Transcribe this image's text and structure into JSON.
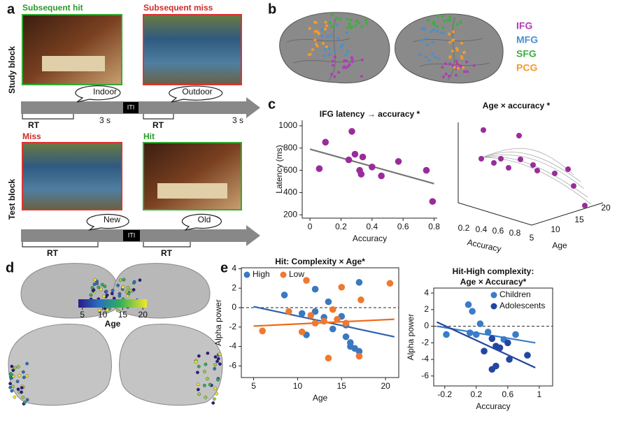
{
  "panel_a": {
    "label": "a",
    "study_block": {
      "title": "Study block",
      "items": [
        "Subsequent hit",
        "Subsequent miss"
      ],
      "responses": [
        "Indoor",
        "Outdoor"
      ],
      "iti": "ITI",
      "rt": [
        "RT",
        "RT"
      ],
      "durations": [
        "3 s",
        "3 s"
      ]
    },
    "test_block": {
      "title": "Test block",
      "items": [
        "Miss",
        "Hit"
      ],
      "responses": [
        "New",
        "Old"
      ],
      "iti": "ITI",
      "rt": [
        "RT",
        "RT"
      ]
    }
  },
  "panel_b": {
    "label": "b",
    "regions": [
      {
        "name": "IFG",
        "color": "#b03cb8"
      },
      {
        "name": "MFG",
        "color": "#4a8fd0"
      },
      {
        "name": "SFG",
        "color": "#3fae3f"
      },
      {
        "name": "PCG",
        "color": "#f39a2a"
      }
    ]
  },
  "panel_c": {
    "label": "c"
  },
  "panel_c_3d": {
    "title": "Age × accuracy *",
    "xlabel": "Accuracy",
    "ylabel": "Age",
    "xticks": [
      "0.2",
      "0.4",
      "0.6",
      "0.8"
    ],
    "yticks": [
      "5",
      "10",
      "15",
      "20"
    ]
  },
  "panel_d": {
    "label": "d",
    "colorbar": {
      "lim": [
        4,
        21
      ],
      "ticks": [
        5,
        10,
        15,
        20
      ],
      "label": "Age"
    }
  },
  "panel_e": {
    "label": "e"
  },
  "chart_data": [
    {
      "type": "scatter",
      "title": "IFG latency → accuracy *",
      "xlabel": "Accuracy",
      "ylabel": "Latency (ms)",
      "xlim": [
        -0.05,
        0.82
      ],
      "ylim": [
        170,
        1050
      ],
      "xticks": [
        0,
        0.2,
        0.4,
        0.6,
        0.8
      ],
      "yticks": [
        200,
        400,
        600,
        800,
        1000
      ],
      "series": [
        {
          "color": "#9a2c9a",
          "x": [
            0.06,
            0.1,
            0.27,
            0.25,
            0.29,
            0.34,
            0.32,
            0.33,
            0.4,
            0.46,
            0.57,
            0.75,
            0.79
          ],
          "values": [
            615,
            853,
            950,
            694,
            745,
            720,
            600,
            565,
            630,
            550,
            680,
            600,
            320
          ],
          "fit": {
            "x": [
              0,
              0.8
            ],
            "values": [
              790,
              480
            ],
            "color": "#777"
          }
        }
      ]
    },
    {
      "type": "scatter",
      "title": "Hit: Complexity × Age*",
      "xlabel": "Age",
      "ylabel": "Alpha power",
      "xlim": [
        3.6,
        21.5
      ],
      "ylim": [
        -7.2,
        4.1
      ],
      "xticks": [
        5,
        10,
        15,
        20
      ],
      "yticks": [
        -6,
        -4,
        -2,
        0,
        2,
        4
      ],
      "box": true,
      "hline": 0,
      "legend": "upper left",
      "series": [
        {
          "name": "High",
          "color": "#3a78c0",
          "x": [
            8.5,
            10.5,
            11,
            12,
            13,
            14,
            15,
            15.5,
            15.5,
            16,
            16.5,
            17,
            17,
            16,
            13.5,
            12
          ],
          "values": [
            1.3,
            -0.6,
            -2.8,
            -0.4,
            -1,
            -2.2,
            -0.9,
            -1.8,
            -3,
            -4,
            -4.2,
            2.6,
            -4.5,
            -3.6,
            0.6,
            1.9
          ],
          "fit": {
            "x": [
              5,
              21
            ],
            "values": [
              0.1,
              -3
            ],
            "color": "#2f62b0"
          }
        },
        {
          "name": "Low",
          "color": "#f07830",
          "x": [
            6,
            9,
            10.5,
            11,
            11.5,
            12,
            13,
            13.5,
            14,
            14.5,
            15,
            15.5,
            17,
            17.2,
            20.5
          ],
          "values": [
            -2.4,
            -0.4,
            -2.5,
            2.8,
            -0.8,
            -1.6,
            -1.4,
            -5.2,
            -0.2,
            -1.2,
            2.1,
            -1.6,
            -5,
            0.8,
            2.5
          ],
          "fit": {
            "x": [
              5,
              21
            ],
            "values": [
              -1.9,
              -1.2
            ],
            "color": "#f06a1a"
          }
        }
      ]
    },
    {
      "type": "scatter",
      "title": [
        "Hit-High complexity:",
        "Age × Accuracy*"
      ],
      "xlabel": "Accuracy",
      "ylabel": "Alpha power",
      "xlim": [
        -0.34,
        1.17
      ],
      "ylim": [
        -7.2,
        4.6
      ],
      "xticks": [
        -0.2,
        0.2,
        0.6,
        1
      ],
      "yticks": [
        -6,
        -4,
        -2,
        0,
        2,
        4
      ],
      "box": true,
      "hline": 0,
      "legend": "upper right",
      "series": [
        {
          "name": "Children",
          "color": "#3a7cc8",
          "x": [
            0.1,
            0.15,
            0.12,
            -0.18,
            0.2,
            0.25,
            0.35,
            0.7,
            0.55
          ],
          "values": [
            2.6,
            1.8,
            -0.8,
            -1,
            -1,
            0.3,
            -0.7,
            -1,
            -1.6
          ],
          "fit": {
            "x": [
              -0.3,
              0.95
            ],
            "values": [
              0,
              -2
            ],
            "color": "#3a7cc8"
          }
        },
        {
          "name": "Adolescents",
          "color": "#2346a0",
          "x": [
            0.4,
            0.45,
            0.5,
            0.6,
            0.62,
            0.4,
            0.45,
            0.85,
            0.3
          ],
          "values": [
            -1.5,
            -2.4,
            -2.6,
            -2,
            -4,
            -5.2,
            -4.8,
            -3.5,
            -3
          ],
          "fit": {
            "x": [
              -0.3,
              0.95
            ],
            "values": [
              0.5,
              -5
            ],
            "color": "#2346a0"
          }
        }
      ]
    }
  ]
}
